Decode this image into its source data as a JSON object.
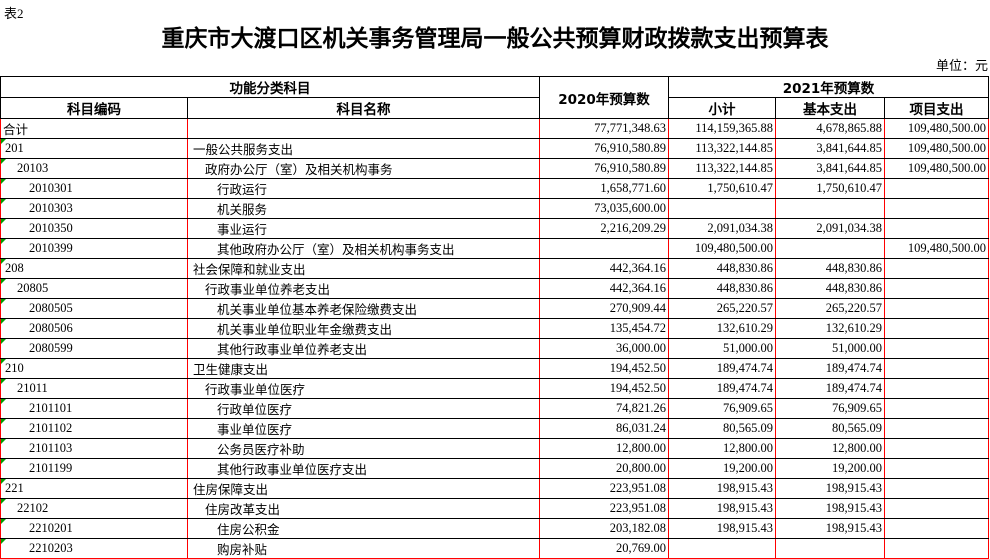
{
  "page": {
    "tag": "表2",
    "title": "重庆市大渡口区机关事务管理局一般公共预算财政拨款支出预算表",
    "unit": "单位：元"
  },
  "colors": {
    "grid_red": "#ff0000",
    "grid_black": "#000000",
    "marker_green": "#00a000"
  },
  "table": {
    "headers": {
      "functional_group": "功能分类科目",
      "code": "科目编码",
      "name": "科目名称",
      "y2020": "2020年预算数",
      "y2021": "2021年预算数",
      "subtotal": "小计",
      "basic": "基本支出",
      "project": "项目支出"
    },
    "rows": [
      {
        "code": "合计",
        "name": "",
        "level": 0,
        "marker": false,
        "v2020": "77,771,348.63",
        "subtotal": "114,159,365.88",
        "basic": "4,678,865.88",
        "project": "109,480,500.00"
      },
      {
        "code": "201",
        "name": "一般公共服务支出",
        "level": 1,
        "marker": true,
        "v2020": "76,910,580.89",
        "subtotal": "113,322,144.85",
        "basic": "3,841,644.85",
        "project": "109,480,500.00"
      },
      {
        "code": "20103",
        "name": "政府办公厅（室）及相关机构事务",
        "level": 2,
        "marker": true,
        "v2020": "76,910,580.89",
        "subtotal": "113,322,144.85",
        "basic": "3,841,644.85",
        "project": "109,480,500.00"
      },
      {
        "code": "2010301",
        "name": "行政运行",
        "level": 3,
        "marker": true,
        "v2020": "1,658,771.60",
        "subtotal": "1,750,610.47",
        "basic": "1,750,610.47",
        "project": ""
      },
      {
        "code": "2010303",
        "name": "机关服务",
        "level": 3,
        "marker": true,
        "v2020": "73,035,600.00",
        "subtotal": "",
        "basic": "",
        "project": ""
      },
      {
        "code": "2010350",
        "name": "事业运行",
        "level": 3,
        "marker": true,
        "v2020": "2,216,209.29",
        "subtotal": "2,091,034.38",
        "basic": "2,091,034.38",
        "project": ""
      },
      {
        "code": "2010399",
        "name": "其他政府办公厅（室）及相关机构事务支出",
        "level": 3,
        "marker": true,
        "v2020": "",
        "subtotal": "109,480,500.00",
        "basic": "",
        "project": "109,480,500.00"
      },
      {
        "code": "208",
        "name": "社会保障和就业支出",
        "level": 1,
        "marker": true,
        "v2020": "442,364.16",
        "subtotal": "448,830.86",
        "basic": "448,830.86",
        "project": ""
      },
      {
        "code": "20805",
        "name": "行政事业单位养老支出",
        "level": 2,
        "marker": true,
        "v2020": "442,364.16",
        "subtotal": "448,830.86",
        "basic": "448,830.86",
        "project": ""
      },
      {
        "code": "2080505",
        "name": "机关事业单位基本养老保险缴费支出",
        "level": 3,
        "marker": true,
        "v2020": "270,909.44",
        "subtotal": "265,220.57",
        "basic": "265,220.57",
        "project": ""
      },
      {
        "code": "2080506",
        "name": "机关事业单位职业年金缴费支出",
        "level": 3,
        "marker": true,
        "v2020": "135,454.72",
        "subtotal": "132,610.29",
        "basic": "132,610.29",
        "project": ""
      },
      {
        "code": "2080599",
        "name": "其他行政事业单位养老支出",
        "level": 3,
        "marker": true,
        "v2020": "36,000.00",
        "subtotal": "51,000.00",
        "basic": "51,000.00",
        "project": ""
      },
      {
        "code": "210",
        "name": "卫生健康支出",
        "level": 1,
        "marker": true,
        "v2020": "194,452.50",
        "subtotal": "189,474.74",
        "basic": "189,474.74",
        "project": ""
      },
      {
        "code": "21011",
        "name": "行政事业单位医疗",
        "level": 2,
        "marker": true,
        "v2020": "194,452.50",
        "subtotal": "189,474.74",
        "basic": "189,474.74",
        "project": ""
      },
      {
        "code": "2101101",
        "name": "行政单位医疗",
        "level": 3,
        "marker": true,
        "v2020": "74,821.26",
        "subtotal": "76,909.65",
        "basic": "76,909.65",
        "project": ""
      },
      {
        "code": "2101102",
        "name": "事业单位医疗",
        "level": 3,
        "marker": true,
        "v2020": "86,031.24",
        "subtotal": "80,565.09",
        "basic": "80,565.09",
        "project": ""
      },
      {
        "code": "2101103",
        "name": "公务员医疗补助",
        "level": 3,
        "marker": true,
        "v2020": "12,800.00",
        "subtotal": "12,800.00",
        "basic": "12,800.00",
        "project": ""
      },
      {
        "code": "2101199",
        "name": "其他行政事业单位医疗支出",
        "level": 3,
        "marker": true,
        "v2020": "20,800.00",
        "subtotal": "19,200.00",
        "basic": "19,200.00",
        "project": ""
      },
      {
        "code": "221",
        "name": "住房保障支出",
        "level": 1,
        "marker": true,
        "v2020": "223,951.08",
        "subtotal": "198,915.43",
        "basic": "198,915.43",
        "project": ""
      },
      {
        "code": "22102",
        "name": "住房改革支出",
        "level": 2,
        "marker": true,
        "v2020": "223,951.08",
        "subtotal": "198,915.43",
        "basic": "198,915.43",
        "project": ""
      },
      {
        "code": "2210201",
        "name": "住房公积金",
        "level": 3,
        "marker": true,
        "v2020": "203,182.08",
        "subtotal": "198,915.43",
        "basic": "198,915.43",
        "project": ""
      },
      {
        "code": "2210203",
        "name": "购房补贴",
        "level": 3,
        "marker": true,
        "v2020": "20,769.00",
        "subtotal": "",
        "basic": "",
        "project": ""
      }
    ]
  }
}
